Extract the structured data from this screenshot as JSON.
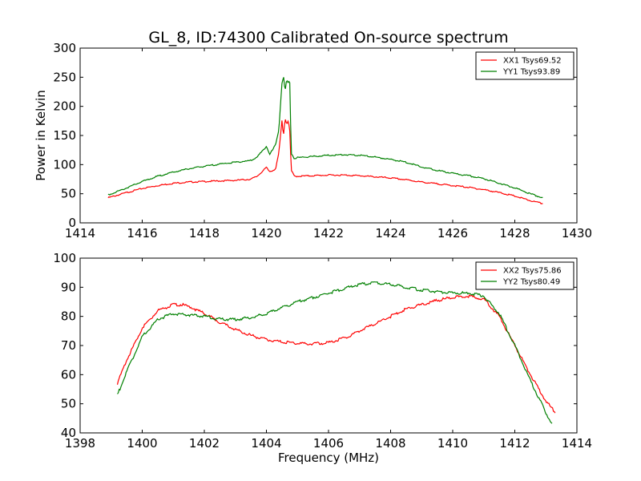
{
  "figure": {
    "title": "GL_8, ID:74300 Calibrated On-source spectrum"
  },
  "chart_data": [
    {
      "type": "line",
      "title": "GL_8, ID:74300 Calibrated On-source spectrum",
      "xlabel": "",
      "ylabel": "Power in Kelvin",
      "xlim": [
        1414,
        1430
      ],
      "ylim": [
        0,
        300
      ],
      "xticks": [
        1414,
        1416,
        1418,
        1420,
        1422,
        1424,
        1426,
        1428,
        1430
      ],
      "yticks": [
        0,
        50,
        100,
        150,
        200,
        250,
        300
      ],
      "grid": false,
      "legend_position": "top-right",
      "series": [
        {
          "name": "XX1 Tsys69.52",
          "color": "#ff0000",
          "x": [
            1414.9,
            1415.5,
            1416.0,
            1416.5,
            1417.0,
            1417.5,
            1418.0,
            1418.5,
            1419.0,
            1419.5,
            1419.7,
            1419.9,
            1420.0,
            1420.1,
            1420.2,
            1420.3,
            1420.4,
            1420.5,
            1420.55,
            1420.6,
            1420.65,
            1420.7,
            1420.75,
            1420.8,
            1420.9,
            1421.0,
            1421.5,
            1422.0,
            1422.5,
            1423.0,
            1423.5,
            1424.0,
            1424.5,
            1425.0,
            1425.5,
            1426.0,
            1426.5,
            1427.0,
            1427.5,
            1428.0,
            1428.5,
            1428.9
          ],
          "values": [
            43,
            52,
            59,
            64,
            68,
            70,
            71,
            72,
            73,
            75,
            80,
            90,
            95,
            88,
            90,
            93,
            120,
            175,
            150,
            180,
            170,
            175,
            160,
            90,
            80,
            80,
            81,
            82,
            82,
            81,
            79,
            77,
            74,
            70,
            67,
            64,
            61,
            57,
            52,
            46,
            38,
            33
          ]
        },
        {
          "name": "YY1 Tsys93.89",
          "color": "#008000",
          "x": [
            1414.9,
            1415.5,
            1416.0,
            1416.5,
            1417.0,
            1417.5,
            1418.0,
            1418.5,
            1419.0,
            1419.5,
            1419.7,
            1419.9,
            1420.0,
            1420.1,
            1420.2,
            1420.3,
            1420.4,
            1420.45,
            1420.5,
            1420.55,
            1420.6,
            1420.65,
            1420.7,
            1420.75,
            1420.8,
            1420.9,
            1421.0,
            1421.5,
            1422.0,
            1422.5,
            1423.0,
            1423.5,
            1424.0,
            1424.5,
            1425.0,
            1425.5,
            1426.0,
            1426.5,
            1427.0,
            1427.5,
            1428.0,
            1428.5,
            1428.9
          ],
          "values": [
            48,
            60,
            71,
            80,
            87,
            93,
            97,
            101,
            104,
            107,
            113,
            125,
            132,
            118,
            125,
            135,
            160,
            200,
            240,
            252,
            225,
            245,
            240,
            245,
            120,
            110,
            112,
            114,
            116,
            117,
            116,
            113,
            109,
            104,
            96,
            90,
            85,
            81,
            76,
            68,
            60,
            50,
            43
          ]
        }
      ]
    },
    {
      "type": "line",
      "title": "",
      "xlabel": "Frequency (MHz)",
      "ylabel": "",
      "xlim": [
        1398,
        1414
      ],
      "ylim": [
        40,
        100
      ],
      "xticks": [
        1398,
        1400,
        1402,
        1404,
        1406,
        1408,
        1410,
        1412,
        1414
      ],
      "yticks": [
        40,
        50,
        60,
        70,
        80,
        90,
        100
      ],
      "grid": false,
      "legend_position": "top-right",
      "series": [
        {
          "name": "XX2 Tsys75.86",
          "color": "#ff0000",
          "x": [
            1399.2,
            1399.5,
            1400.0,
            1400.5,
            1401.0,
            1401.3,
            1401.6,
            1402.0,
            1402.5,
            1403.0,
            1403.5,
            1404.0,
            1404.5,
            1405.0,
            1405.5,
            1406.0,
            1406.5,
            1407.0,
            1407.5,
            1408.0,
            1408.5,
            1409.0,
            1409.5,
            1410.0,
            1410.5,
            1411.0,
            1411.5,
            1412.0,
            1412.5,
            1413.0,
            1413.3
          ],
          "values": [
            57,
            65,
            76,
            82,
            84,
            84,
            83,
            81,
            78,
            75.5,
            73.5,
            72,
            71.2,
            70.8,
            70.5,
            71,
            72.5,
            75,
            77.5,
            80,
            82.5,
            84,
            85.5,
            86.5,
            87,
            86,
            80,
            70,
            60,
            51,
            47
          ]
        },
        {
          "name": "YY2 Tsys80.49",
          "color": "#008000",
          "x": [
            1399.2,
            1399.5,
            1400.0,
            1400.5,
            1401.0,
            1401.5,
            1402.0,
            1402.5,
            1403.0,
            1403.5,
            1404.0,
            1404.5,
            1405.0,
            1405.5,
            1406.0,
            1406.5,
            1407.0,
            1407.5,
            1408.0,
            1408.5,
            1409.0,
            1409.5,
            1410.0,
            1410.5,
            1411.0,
            1411.5,
            1412.0,
            1412.5,
            1413.0,
            1413.2
          ],
          "values": [
            53,
            61,
            73,
            79,
            81,
            80.5,
            80,
            79,
            79,
            79.5,
            81,
            83,
            85,
            86.5,
            88,
            89.5,
            91,
            91.5,
            91,
            90,
            89,
            88.5,
            88,
            88,
            87,
            81,
            70,
            58,
            47,
            43
          ]
        }
      ]
    }
  ]
}
